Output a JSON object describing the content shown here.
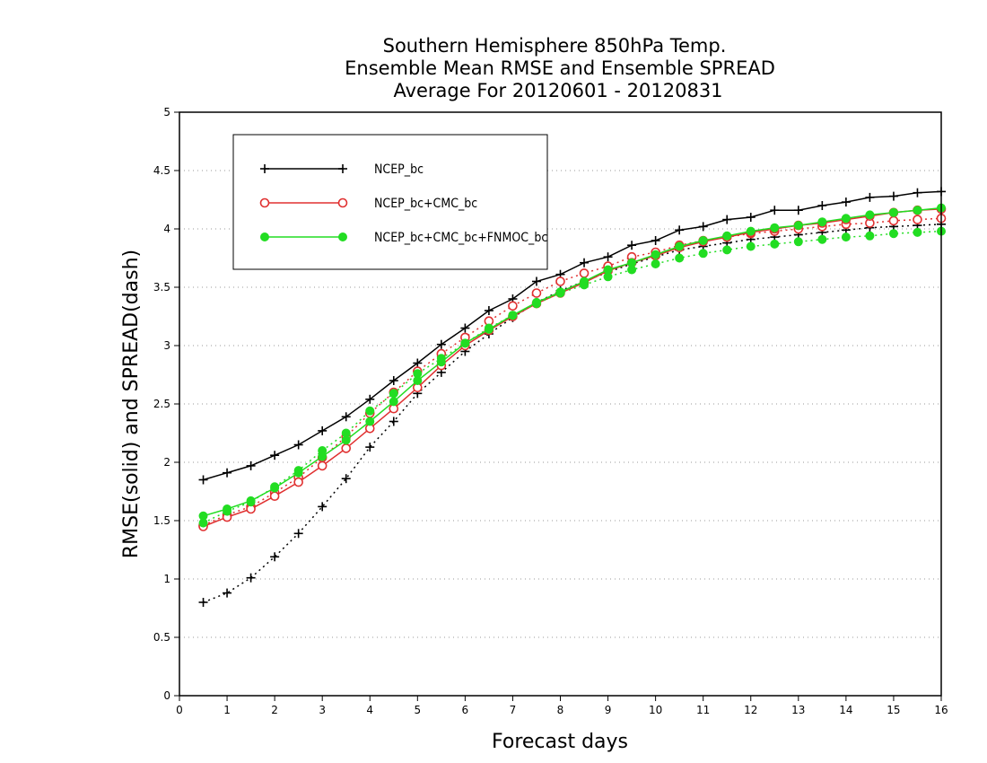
{
  "chart_data": {
    "type": "line",
    "title": [
      "Southern Hemisphere 850hPa Temp.",
      "Ensemble Mean RMSE and Ensemble SPREAD",
      "Average For 20120601 - 20120831"
    ],
    "xlabel": "Forecast days",
    "ylabel": "RMSE(solid) and SPREAD(dash)",
    "xlim": [
      0,
      16
    ],
    "ylim": [
      0,
      5
    ],
    "xticks": [
      "0",
      "1",
      "2",
      "3",
      "4",
      "5",
      "6",
      "7",
      "8",
      "9",
      "10",
      "11",
      "12",
      "13",
      "14",
      "15",
      "16"
    ],
    "yticks": [
      "0",
      "0.5",
      "1",
      "1.5",
      "2",
      "2.5",
      "3",
      "3.5",
      "4",
      "4.5",
      "5"
    ],
    "grid": "horizontal dotted",
    "legend_position": "top-left",
    "x": [
      0.5,
      1,
      1.5,
      2,
      2.5,
      3,
      3.5,
      4,
      4.5,
      5,
      5.5,
      6,
      6.5,
      7,
      7.5,
      8,
      8.5,
      9,
      9.5,
      10,
      10.5,
      11,
      11.5,
      12,
      12.5,
      13,
      13.5,
      14,
      14.5,
      15,
      15.5,
      16
    ],
    "series": [
      {
        "name": "NCEP_bc",
        "color": "#000000",
        "marker": "plus",
        "rmse": [
          1.85,
          1.91,
          1.97,
          2.06,
          2.15,
          2.27,
          2.39,
          2.54,
          2.7,
          2.85,
          3.01,
          3.15,
          3.3,
          3.4,
          3.55,
          3.61,
          3.71,
          3.76,
          3.86,
          3.9,
          3.99,
          4.02,
          4.08,
          4.1,
          4.16,
          4.16,
          4.2,
          4.23,
          4.27,
          4.28,
          4.31,
          4.32
        ],
        "spread": [
          0.8,
          0.88,
          1.01,
          1.19,
          1.39,
          1.62,
          1.86,
          2.13,
          2.35,
          2.59,
          2.77,
          2.95,
          3.1,
          3.24,
          3.37,
          3.47,
          3.55,
          3.63,
          3.7,
          3.76,
          3.82,
          3.85,
          3.88,
          3.91,
          3.93,
          3.95,
          3.97,
          3.99,
          4.01,
          4.02,
          4.03,
          4.04
        ]
      },
      {
        "name": "NCEP_bc+CMC_bc",
        "color": "#e03030",
        "marker": "open-circle",
        "rmse": [
          1.45,
          1.53,
          1.6,
          1.71,
          1.83,
          1.97,
          2.12,
          2.29,
          2.46,
          2.64,
          2.83,
          3.0,
          3.13,
          3.25,
          3.36,
          3.45,
          3.54,
          3.64,
          3.71,
          3.77,
          3.84,
          3.89,
          3.93,
          3.97,
          4.0,
          4.03,
          4.05,
          4.08,
          4.11,
          4.14,
          4.16,
          4.17
        ],
        "spread": [
          1.46,
          1.55,
          1.62,
          1.74,
          1.87,
          2.04,
          2.22,
          2.42,
          2.6,
          2.78,
          2.93,
          3.07,
          3.21,
          3.34,
          3.45,
          3.55,
          3.62,
          3.68,
          3.76,
          3.8,
          3.86,
          3.9,
          3.93,
          3.96,
          3.98,
          4.0,
          4.02,
          4.04,
          4.05,
          4.07,
          4.08,
          4.09
        ]
      },
      {
        "name": "NCEP_bc+CMC_bc+FNMOC_bc",
        "color": "#22dd22",
        "marker": "filled-circle",
        "rmse": [
          1.54,
          1.6,
          1.67,
          1.78,
          1.91,
          2.05,
          2.19,
          2.35,
          2.52,
          2.7,
          2.86,
          3.02,
          3.14,
          3.26,
          3.37,
          3.46,
          3.55,
          3.65,
          3.71,
          3.78,
          3.85,
          3.9,
          3.94,
          3.98,
          4.01,
          4.03,
          4.06,
          4.09,
          4.12,
          4.14,
          4.16,
          4.18
        ],
        "spread": [
          1.48,
          1.58,
          1.66,
          1.79,
          1.93,
          2.1,
          2.25,
          2.44,
          2.59,
          2.76,
          2.89,
          3.02,
          3.15,
          3.26,
          3.36,
          3.45,
          3.52,
          3.59,
          3.65,
          3.7,
          3.75,
          3.79,
          3.82,
          3.85,
          3.87,
          3.89,
          3.91,
          3.93,
          3.94,
          3.96,
          3.97,
          3.98
        ]
      }
    ]
  }
}
